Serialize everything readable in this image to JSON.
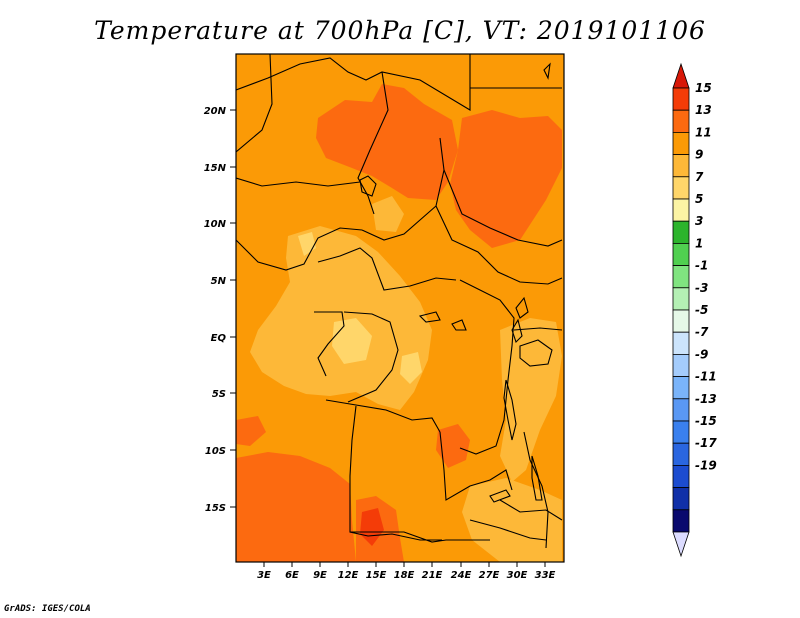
{
  "title": "Temperature at 700hPa [C], VT: 2019101106",
  "credit": "GrADS: IGES/COLA",
  "colors": {
    "c11_13": "#fc6a10",
    "c9_11": "#fb9a06",
    "c7_9": "#fdb838",
    "c5_7": "#ffd66a",
    "border": "#000000"
  },
  "lat_labels": [
    "20N",
    "15N",
    "10N",
    "5N",
    "EQ",
    "5S",
    "10S",
    "15S"
  ],
  "lon_labels": [
    "3E",
    "6E",
    "9E",
    "12E",
    "15E",
    "18E",
    "21E",
    "24E",
    "27E",
    "30E",
    "33E"
  ],
  "legend": {
    "colors": [
      "#dcdcff",
      "#0a0a6e",
      "#1030a8",
      "#1c4cd0",
      "#2a66e0",
      "#3a80ee",
      "#5a98f4",
      "#7ab4fa",
      "#a4ccfc",
      "#cce4fc",
      "#e6f8e8",
      "#b4f0b4",
      "#80e480",
      "#50d050",
      "#2cb42c",
      "#fcf4a4",
      "#ffd66a",
      "#fdb838",
      "#fb9a06",
      "#fc6a10",
      "#f43c08",
      "#d81808"
    ],
    "labels": [
      "15",
      "13",
      "11",
      "9",
      "7",
      "5",
      "3",
      "1",
      "-1",
      "-3",
      "-5",
      "-7",
      "-9",
      "-11",
      "-13",
      "-15",
      "-17",
      "-19"
    ]
  }
}
